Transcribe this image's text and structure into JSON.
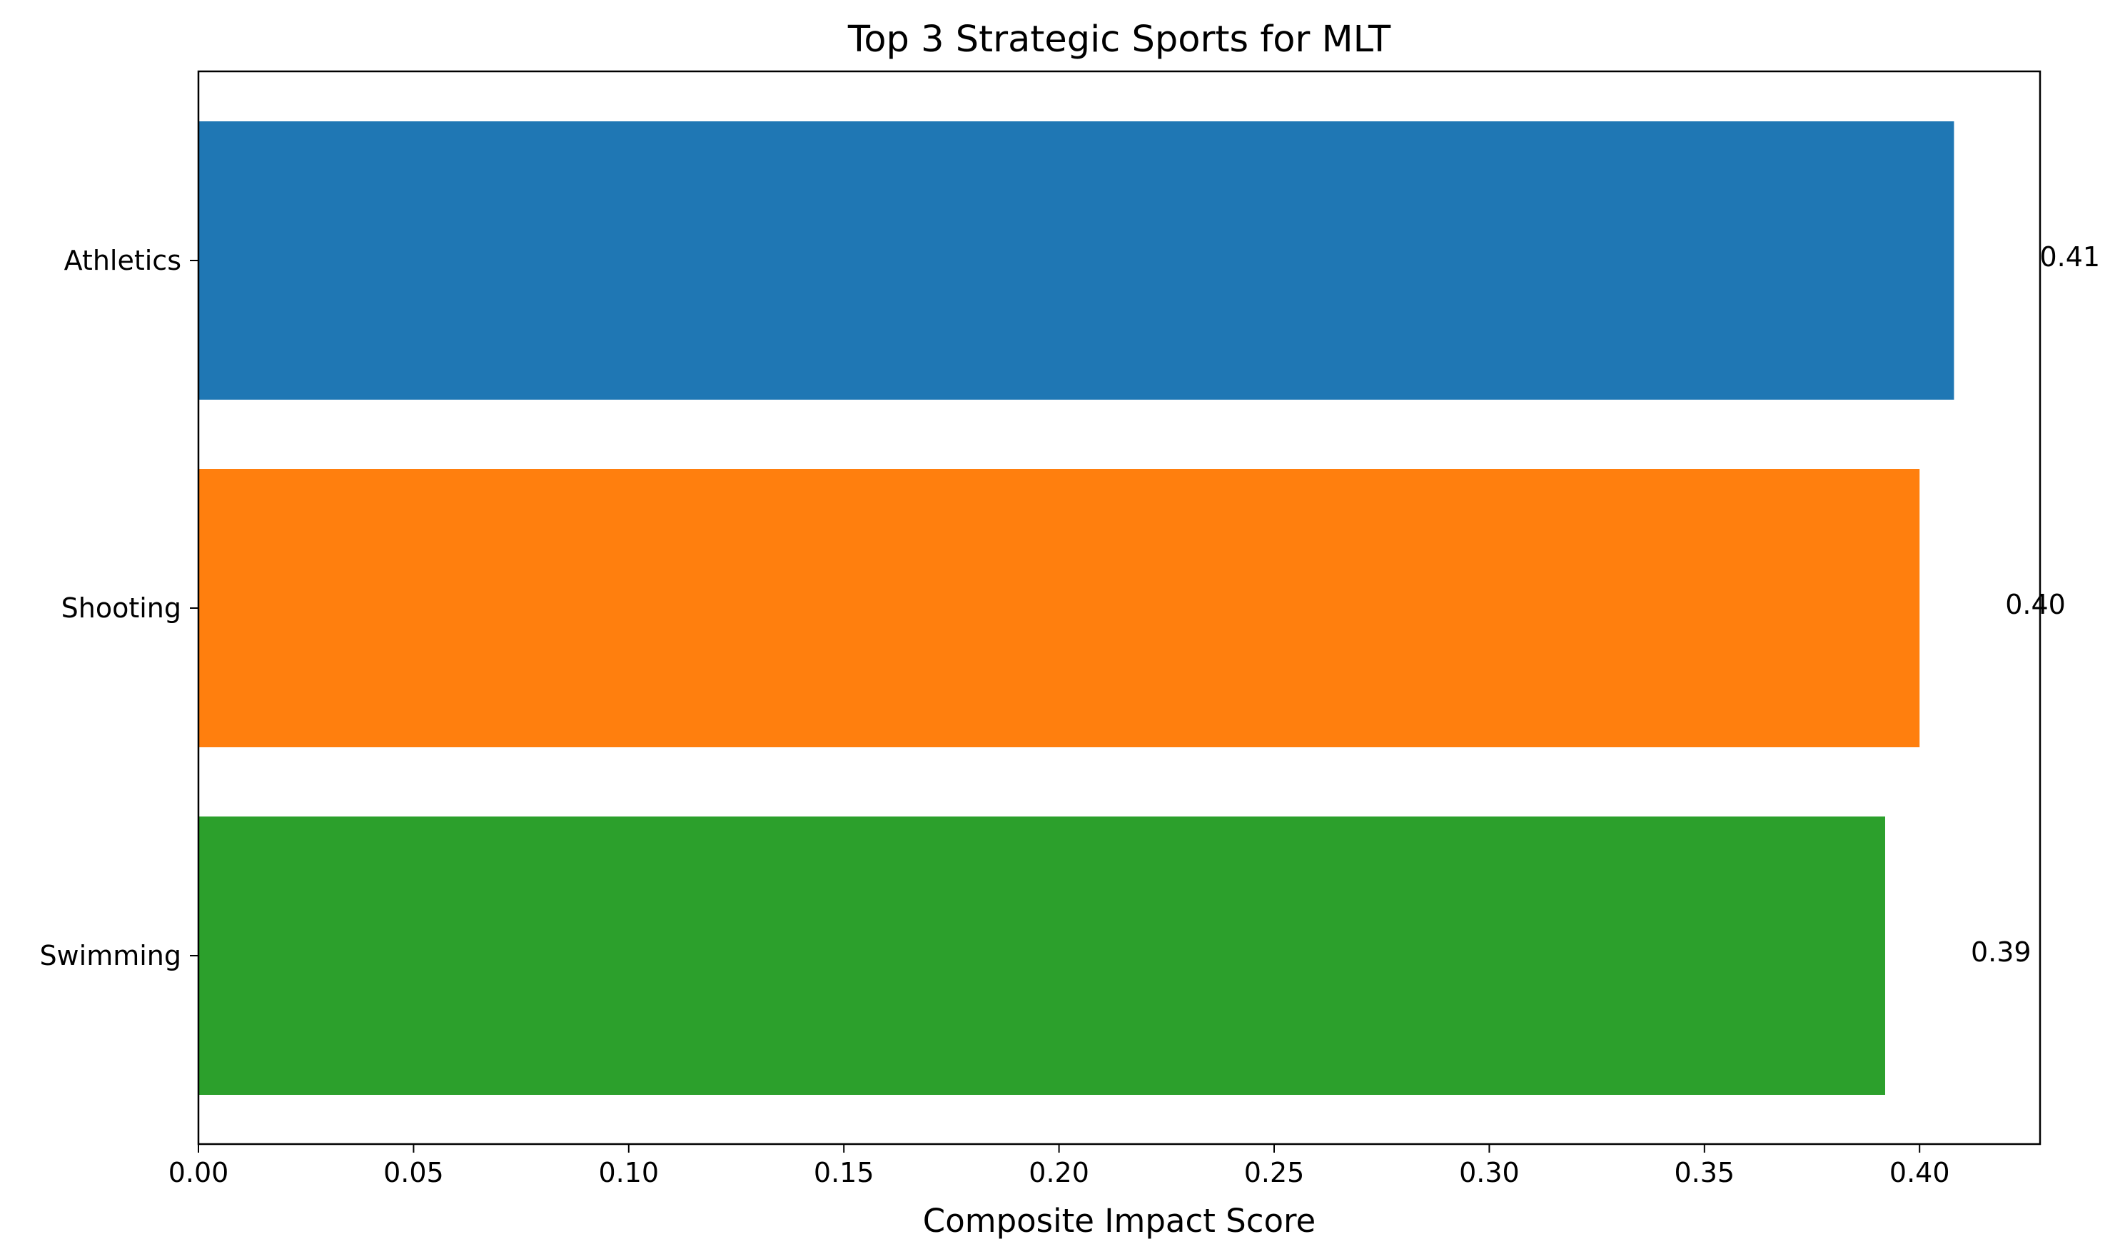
{
  "chart_data": {
    "type": "bar",
    "orientation": "horizontal",
    "title": "Top 3 Strategic Sports for MLT",
    "xlabel": "Composite Impact Score",
    "ylabel": "",
    "categories": [
      "Athletics",
      "Shooting",
      "Swimming"
    ],
    "values": [
      0.408,
      0.4,
      0.392
    ],
    "value_labels": [
      "0.41",
      "0.40",
      "0.39"
    ],
    "colors": [
      "#1f77b4",
      "#ff7f0e",
      "#2ca02c"
    ],
    "xlim": [
      0,
      0.428
    ],
    "xticks": [
      0.0,
      0.05,
      0.1,
      0.15,
      0.2,
      0.25,
      0.3,
      0.35,
      0.4
    ],
    "xtick_labels": [
      "0.00",
      "0.05",
      "0.10",
      "0.15",
      "0.20",
      "0.25",
      "0.30",
      "0.35",
      "0.40"
    ],
    "grid": false,
    "legend": "none"
  }
}
